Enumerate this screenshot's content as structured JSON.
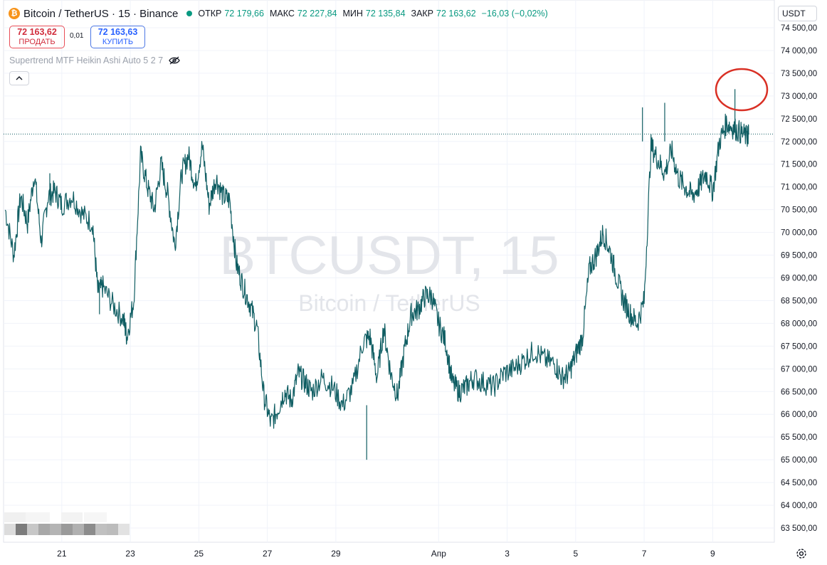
{
  "header": {
    "title": "Bitcoin / TetherUS · 15 · Binance",
    "coin_icon": "bitcoin-icon",
    "ohlc": [
      {
        "label": "ОТКР",
        "value": "72 179,66"
      },
      {
        "label": "МАКС",
        "value": "72 227,84"
      },
      {
        "label": "МИН",
        "value": "72 135,84"
      },
      {
        "label": "ЗАКР",
        "value": "72 163,62"
      }
    ],
    "change": "−16,03 (−0,02%)"
  },
  "trade": {
    "sell_price": "72 163,62",
    "sell_label": "ПРОДАТЬ",
    "spread": "0,01",
    "buy_price": "72 163,63",
    "buy_label": "КУПИТЬ"
  },
  "indicator": {
    "name": "Supertrend MTF Heikin Ashi Auto 5 2 7",
    "icon": "eye-crossed-icon"
  },
  "currency_select": "USDT",
  "watermark": {
    "symbol": "BTCUSDT, 15",
    "name": "Bitcoin / TetherUS"
  },
  "colors": {
    "line": "#105e63",
    "grid": "#f0f3fa",
    "up": "#089981",
    "sell": "#d12d3c",
    "buy": "#2962ff",
    "annotation": "#d93025",
    "watermark": "#e3e5ea"
  },
  "chart_data": {
    "type": "line",
    "title": "BTCUSDT, 15",
    "y_axis_ticks": [
      "74 500,00",
      "74 000,00",
      "73 500,00",
      "73 000,00",
      "72 500,00",
      "72 000,00",
      "71 500,00",
      "71 000,00",
      "70 500,00",
      "70 000,00",
      "69 500,00",
      "69 000,00",
      "68 500,00",
      "68 000,00",
      "67 500,00",
      "67 000,00",
      "66 500,00",
      "66 000,00",
      "65 500,00",
      "65 000,00",
      "64 500,00",
      "64 000,00",
      "63 500,00"
    ],
    "ylim": [
      63000,
      74600
    ],
    "x_axis_ticks": [
      {
        "label": "21",
        "day": 21
      },
      {
        "label": "23",
        "day": 23
      },
      {
        "label": "25",
        "day": 25
      },
      {
        "label": "27",
        "day": 27
      },
      {
        "label": "29",
        "day": 29
      },
      {
        "label": "Апр",
        "day": 32
      },
      {
        "label": "3",
        "day": 34
      },
      {
        "label": "5",
        "day": 36
      },
      {
        "label": "7",
        "day": 38
      },
      {
        "label": "9",
        "day": 40
      }
    ],
    "xlim": [
      19.3,
      41.8
    ],
    "series": [
      {
        "x": [
          19.35,
          19.6,
          19.8,
          20.0,
          20.2,
          20.4,
          20.6,
          20.8,
          21.0,
          21.3,
          21.6,
          21.9,
          22.05,
          22.2,
          22.5,
          22.8,
          22.9,
          23.1,
          23.3,
          23.5,
          23.7,
          23.9,
          24.1,
          24.3,
          24.5,
          24.7,
          24.9,
          25.1,
          25.3,
          25.5,
          25.7,
          25.9,
          26.1,
          26.3,
          26.5,
          26.7,
          26.9,
          27.1,
          27.3,
          27.5,
          27.7,
          27.9,
          28.1,
          28.3,
          28.6,
          28.9,
          29.2,
          29.5,
          29.8,
          30.0,
          30.2,
          30.4,
          30.6,
          30.8,
          31.0,
          31.2,
          31.4,
          31.6,
          31.8,
          32.0,
          32.2,
          32.4,
          32.6,
          32.8,
          33.0,
          33.3,
          33.6,
          33.9,
          34.2,
          34.5,
          34.8,
          35.1,
          35.4,
          35.6,
          35.8,
          36.0,
          36.2,
          36.4,
          36.6,
          36.8,
          37.0,
          37.2,
          37.4,
          37.6,
          37.8,
          38.0,
          38.2,
          38.4,
          38.6,
          38.8,
          39.0,
          39.2,
          39.4,
          39.6,
          39.8,
          40.0,
          40.2,
          40.4,
          40.6,
          40.8,
          41.0,
          41.05
        ],
        "y": [
          70500,
          69500,
          70800,
          70200,
          71300,
          69800,
          70800,
          70900,
          70600,
          70800,
          70400,
          70200,
          68700,
          68800,
          68400,
          68100,
          67700,
          68500,
          71700,
          71000,
          70500,
          71500,
          70800,
          69700,
          71300,
          71700,
          71000,
          71900,
          70600,
          71200,
          70800,
          70700,
          69300,
          68800,
          68400,
          67900,
          66400,
          65800,
          66100,
          66500,
          66300,
          66900,
          66700,
          66500,
          66800,
          66600,
          66200,
          66600,
          67600,
          67700,
          66800,
          67900,
          66900,
          66400,
          67400,
          68200,
          68300,
          68600,
          68600,
          68000,
          67600,
          66700,
          66500,
          66600,
          66800,
          66700,
          66600,
          66900,
          67000,
          67200,
          67400,
          67200,
          67100,
          66800,
          66900,
          67300,
          67700,
          69200,
          69500,
          70000,
          69600,
          69000,
          68500,
          68200,
          68000,
          68500,
          71900,
          71600,
          71300,
          71800,
          71200,
          71000,
          70800,
          71000,
          71300,
          70900,
          72000,
          72400,
          72300,
          72200,
          72100,
          72163
        ]
      }
    ],
    "last_price": 72163.62,
    "ylabel": "",
    "xlabel": ""
  }
}
